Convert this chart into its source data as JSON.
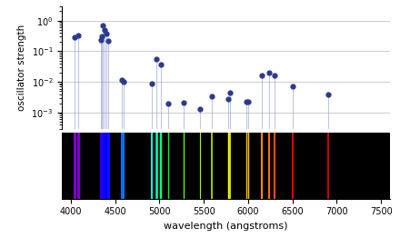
{
  "xlabel": "wavelength (angstroms)",
  "ylabel": "oscillator strength",
  "xlim": [
    3900,
    7600
  ],
  "ylim_log": [
    0.0003,
    3.0
  ],
  "spectrum_lines": [
    {
      "wl": 4046.6,
      "strength": 0.28
    },
    {
      "wl": 4077.8,
      "strength": 0.32
    },
    {
      "wl": 4339.0,
      "strength": 0.24
    },
    {
      "wl": 4347.5,
      "strength": 0.3
    },
    {
      "wl": 4358.3,
      "strength": 0.68
    },
    {
      "wl": 4380.0,
      "strength": 0.5
    },
    {
      "wl": 4399.0,
      "strength": 0.38
    },
    {
      "wl": 4420.0,
      "strength": 0.22
    },
    {
      "wl": 4570.0,
      "strength": 0.012
    },
    {
      "wl": 4600.0,
      "strength": 0.01
    },
    {
      "wl": 4916.0,
      "strength": 0.009
    },
    {
      "wl": 4960.3,
      "strength": 0.055
    },
    {
      "wl": 5015.7,
      "strength": 0.038
    },
    {
      "wl": 5100.0,
      "strength": 0.002
    },
    {
      "wl": 5270.0,
      "strength": 0.0021
    },
    {
      "wl": 5460.7,
      "strength": 0.0013
    },
    {
      "wl": 5590.0,
      "strength": 0.0035
    },
    {
      "wl": 5769.6,
      "strength": 0.0028
    },
    {
      "wl": 5790.7,
      "strength": 0.0045
    },
    {
      "wl": 5980.0,
      "strength": 0.0022
    },
    {
      "wl": 6000.0,
      "strength": 0.0022
    },
    {
      "wl": 6150.0,
      "strength": 0.016
    },
    {
      "wl": 6234.0,
      "strength": 0.02
    },
    {
      "wl": 6300.0,
      "strength": 0.016
    },
    {
      "wl": 6500.0,
      "strength": 0.007
    },
    {
      "wl": 6907.0,
      "strength": 0.0038
    }
  ],
  "dot_color": "#2b3a8f",
  "line_color": "#8899cc",
  "line_alpha": 0.55,
  "top_bg": "#ffffff",
  "bottom_bg": "#000000"
}
